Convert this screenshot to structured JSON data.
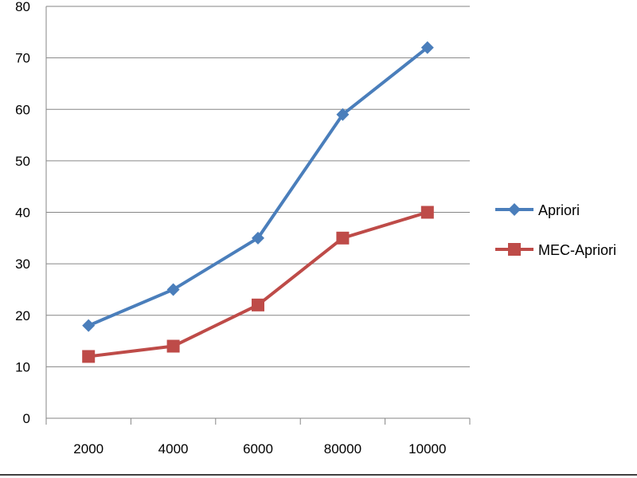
{
  "chart_data": {
    "type": "line",
    "categories": [
      "2000",
      "4000",
      "6000",
      "80000",
      "10000"
    ],
    "series": [
      {
        "name": "Apriori",
        "values": [
          18,
          25,
          35,
          59,
          72
        ],
        "color": "#4a7ebb",
        "marker": "diamond"
      },
      {
        "name": "MEC-Apriori",
        "values": [
          12,
          14,
          22,
          35,
          40
        ],
        "color": "#be4b48",
        "marker": "square"
      }
    ],
    "title": "",
    "xlabel": "",
    "ylabel": "",
    "ylim": [
      0,
      80
    ],
    "yticks": [
      0,
      10,
      20,
      30,
      40,
      50,
      60,
      70,
      80
    ],
    "grid": true,
    "legend_position": "right"
  }
}
